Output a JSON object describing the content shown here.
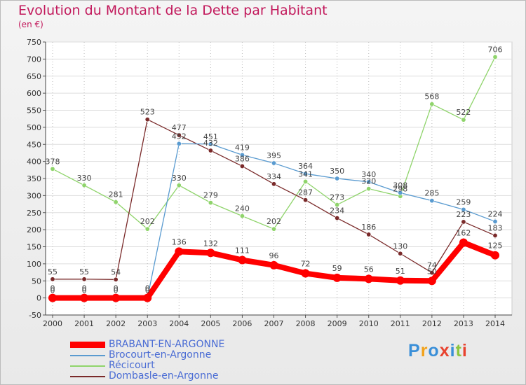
{
  "chart_data": {
    "type": "line",
    "title": "Evolution du Montant de la Dette par Habitant",
    "ylabel": "(en €)",
    "xlabel": "",
    "x": [
      "2000",
      "2001",
      "2002",
      "2003",
      "2004",
      "2005",
      "2006",
      "2007",
      "2008",
      "2009",
      "2010",
      "2011",
      "2012",
      "2013",
      "2014"
    ],
    "ylim": [
      -50,
      750
    ],
    "yticks": [
      -50,
      0,
      50,
      100,
      150,
      200,
      250,
      300,
      350,
      400,
      450,
      500,
      550,
      600,
      650,
      700,
      750
    ],
    "series": [
      {
        "name": "Récicourt",
        "color": "#8fd46b",
        "emphasis": false,
        "values": [
          378,
          330,
          281,
          202,
          330,
          279,
          240,
          202,
          341,
          273,
          320,
          298,
          568,
          522,
          706
        ]
      },
      {
        "name": "Dombasle-en-Argonne",
        "color": "#7a2a2a",
        "emphasis": false,
        "values": [
          55,
          55,
          54,
          523,
          477,
          432,
          386,
          334,
          287,
          234,
          186,
          130,
          74,
          223,
          183
        ]
      },
      {
        "name": "Brocourt-en-Argonne",
        "color": "#5a9bd0",
        "emphasis": false,
        "values": [
          0,
          0,
          0,
          0,
          452,
          451,
          419,
          395,
          364,
          350,
          340,
          308,
          285,
          259,
          224
        ]
      },
      {
        "name": "BRABANT-EN-ARGONNE",
        "color": "#ff0000",
        "emphasis": true,
        "values": [
          0,
          0,
          0,
          0,
          136,
          132,
          111,
          96,
          72,
          59,
          56,
          51,
          50,
          162,
          125
        ]
      }
    ],
    "legend": {
      "position": "bottom-left",
      "items": [
        {
          "name": "BRABANT-EN-ARGONNE",
          "color": "#ff0000"
        },
        {
          "name": "Brocourt-en-Argonne",
          "color": "#5a9bd0"
        },
        {
          "name": "Récicourt",
          "color": "#8fd46b"
        },
        {
          "name": "Dombasle-en-Argonne",
          "color": "#7a2a2a"
        }
      ]
    }
  },
  "brand": {
    "name": "Proxiti",
    "letters": [
      "P",
      "r",
      "o",
      "x",
      "i",
      "t",
      "i"
    ],
    "colors": [
      "#3a8fd8",
      "#f2a21a",
      "#3a8fd8",
      "#e8432f",
      "#3a8fd8",
      "#8cc63f",
      "#e8432f"
    ]
  }
}
